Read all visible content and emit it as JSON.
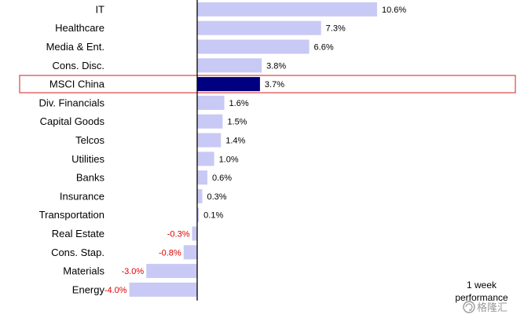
{
  "chart_data": {
    "type": "bar",
    "orientation": "horizontal",
    "title": "",
    "xlabel": "",
    "ylabel": "",
    "categories": [
      "IT",
      "Healthcare",
      "Media & Ent.",
      "Cons. Disc.",
      "MSCI China",
      "Div. Financials",
      "Capital Goods",
      "Telcos",
      "Utilities",
      "Banks",
      "Insurance",
      "Transportation",
      "Real Estate",
      "Cons. Stap.",
      "Materials",
      "Energy"
    ],
    "values": [
      10.6,
      7.3,
      6.6,
      3.8,
      3.7,
      1.6,
      1.5,
      1.4,
      1.0,
      0.6,
      0.3,
      0.1,
      -0.3,
      -0.8,
      -3.0,
      -4.0
    ],
    "value_labels": [
      "10.6%",
      "7.3%",
      "6.6%",
      "3.8%",
      "3.7%",
      "1.6%",
      "1.5%",
      "1.4%",
      "1.0%",
      "0.6%",
      "0.3%",
      "0.1%",
      "-0.3%",
      "-0.8%",
      "-3.0%",
      "-4.0%"
    ],
    "highlight_category": "MSCI China",
    "legend_note": "1 week performance",
    "grid": false,
    "xlim": [
      -4.5,
      10.9
    ]
  },
  "colors": {
    "bar": "#c9c9f5",
    "highlight_bar": "#000080",
    "highlight_box": "#e05050",
    "negative_label": "#e00000",
    "positive_label": "#000000",
    "axis": "#000000"
  },
  "watermark": {
    "text": "格隆汇"
  }
}
